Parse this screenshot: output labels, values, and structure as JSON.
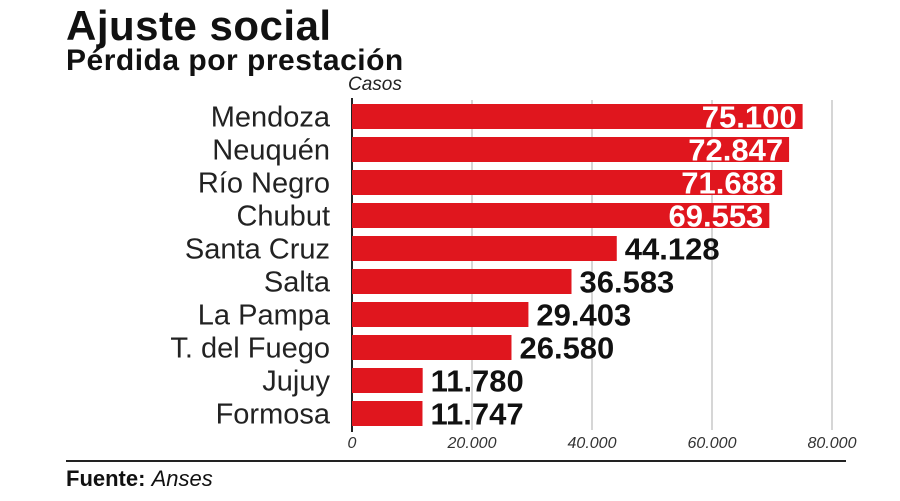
{
  "chart_data": {
    "type": "bar",
    "orientation": "horizontal",
    "title": "Ajuste social",
    "subtitle": "Pérdida por prestación",
    "unit_label": "Casos",
    "categories": [
      "Mendoza",
      "Neuquén",
      "Río Negro",
      "Chubut",
      "Santa Cruz",
      "Salta",
      "La Pampa",
      "T. del Fuego",
      "Jujuy",
      "Formosa"
    ],
    "values": [
      75100,
      72847,
      71688,
      69553,
      44128,
      36583,
      29403,
      26580,
      11780,
      11747
    ],
    "value_labels": [
      "75.100",
      "72.847",
      "71.688",
      "69.553",
      "44.128",
      "36.583",
      "29.403",
      "26.580",
      "11.780",
      "11.747"
    ],
    "xlim": [
      0,
      80000
    ],
    "ticks": [
      0,
      20000,
      40000,
      60000,
      80000
    ],
    "tick_labels": [
      "0",
      "20.000",
      "40.000",
      "60.000",
      "80.000"
    ],
    "grid": true,
    "bar_color": "#e0161e"
  },
  "source": {
    "label": "Fuente:",
    "value": "Anses"
  }
}
